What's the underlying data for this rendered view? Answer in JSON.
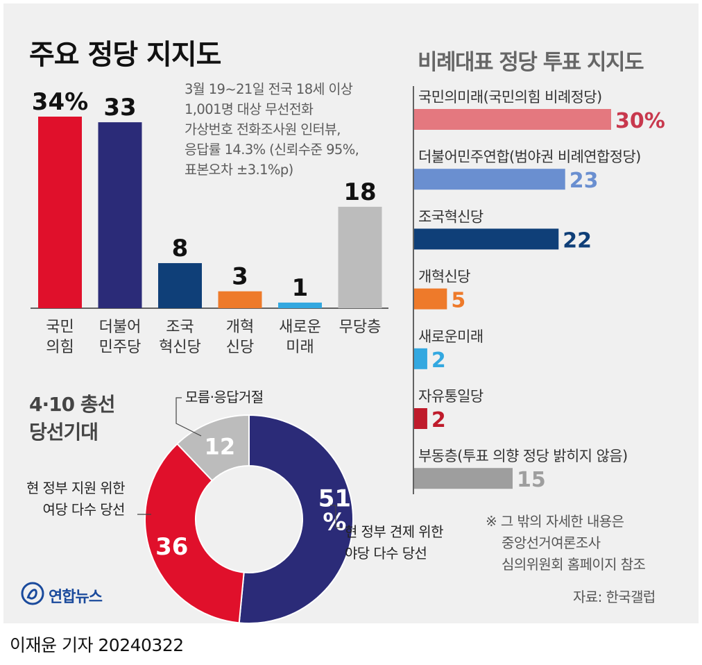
{
  "title": "주요 정당 지지도",
  "survey_note": "3월 19~21일 전국 18세 이상\n1,001명 대상 무선전화\n가상번호 전화조사원 인터뷰,\n응답률 14.3% (신뢰수준 95%,\n표본오차 ±3.1%p)",
  "right_title": "비례대표 정당 투표 지지도",
  "donut_title": "4·10 총선\n당선기대",
  "footnote": "※ 그 밖의 자세한 내용은\n    중앙선거여론조사\n    심의위원회 홈페이지 참조",
  "source": "자료: 한국갤럽",
  "logo": "연합뉴스",
  "byline": "이재윤 기자  20240322",
  "chart_data": [
    {
      "type": "bar",
      "categories": [
        "국민\n의힘",
        "더불어\n민주당",
        "조국\n혁신당",
        "개혁\n신당",
        "새로운\n미래",
        "무당층"
      ],
      "values": [
        34,
        33,
        8,
        3,
        1,
        18
      ],
      "value_labels": [
        "34%",
        "33",
        "8",
        "3",
        "1",
        "18"
      ],
      "colors": [
        "#e0102b",
        "#2b2b78",
        "#0f3f78",
        "#ee7a2a",
        "#33a8e0",
        "#bcbcbc"
      ],
      "ylim": [
        0,
        34
      ]
    },
    {
      "type": "bar",
      "orientation": "horizontal",
      "categories": [
        "국민의미래(국민의힘 비례정당)",
        "더불어민주연합(범야권 비례연합정당)",
        "조국혁신당",
        "개혁신당",
        "새로운미래",
        "자유통일당",
        "부동층(투표 의향 정당 밝히지 않음)"
      ],
      "values": [
        30,
        23,
        22,
        5,
        2,
        2,
        15
      ],
      "value_labels": [
        "30%",
        "23",
        "22",
        "5",
        "2",
        "2",
        "15"
      ],
      "colors": [
        "#e4787f",
        "#6a8fd0",
        "#0f3f78",
        "#ee7a2a",
        "#33a8e0",
        "#bf1b2b",
        "#9e9e9e"
      ],
      "label_colors": [
        "#c8384d",
        "#6a8fd0",
        "#0f3f78",
        "#ee7a2a",
        "#33a8e0",
        "#bf1b2b",
        "#9e9e9e"
      ],
      "xlim": [
        0,
        30
      ]
    },
    {
      "type": "pie",
      "categories": [
        "현 정부 견제 위한\n야당 다수 당선",
        "현 정부 지원 위한\n여당 다수 당선",
        "모름·응답거절"
      ],
      "values": [
        51,
        36,
        12
      ],
      "value_labels": [
        "51\n%",
        "36",
        "12"
      ],
      "colors": [
        "#2b2b78",
        "#e0102b",
        "#bcbcbc"
      ]
    }
  ]
}
